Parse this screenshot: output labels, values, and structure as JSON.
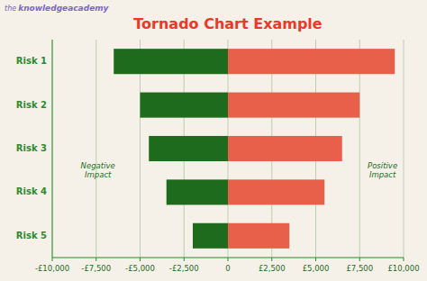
{
  "chart_data": {
    "type": "bar",
    "orientation": "horizontal",
    "title": "Tornado Chart Example",
    "categories": [
      "Risk 1",
      "Risk 2",
      "Risk 3",
      "Risk 4",
      "Risk 5"
    ],
    "series": [
      {
        "color": "#1e6b1e",
        "values": [
          -6500,
          -5000,
          -4500,
          -3500,
          -2000
        ]
      },
      {
        "color": "#e8604a",
        "values": [
          9500,
          7500,
          6500,
          5500,
          3500
        ]
      }
    ],
    "xlim": [
      -10000,
      10000
    ],
    "xticks": [
      {
        "value": -10000,
        "label": "-£10,000"
      },
      {
        "value": -7500,
        "label": "-£7,500"
      },
      {
        "value": -5000,
        "label": "-£5,000"
      },
      {
        "value": -2500,
        "label": "-£2,500"
      },
      0,
      {
        "value": 2500,
        "label": "£2,500"
      },
      {
        "value": 5000,
        "label": "£5,000"
      },
      {
        "value": 7500,
        "label": "£7,500"
      },
      {
        "value": 10000,
        "label": "£10,000"
      }
    ],
    "grid": true,
    "annotations": [
      "Negative\nImpact",
      "Positive\nImpact",
      "the",
      "knowledgeacademy"
    ]
  }
}
